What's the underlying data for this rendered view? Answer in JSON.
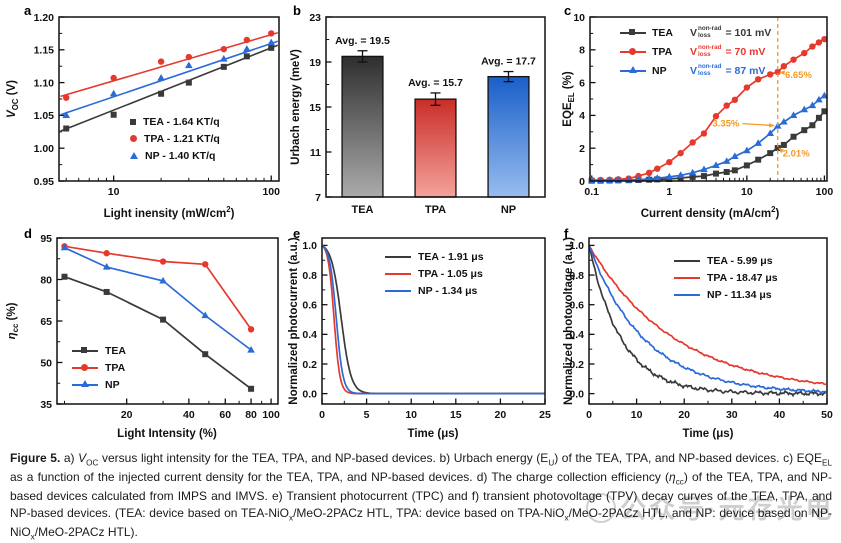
{
  "colors": {
    "tea": "#3a3a3a",
    "tpa": "#e6392e",
    "np": "#2b6bd7",
    "annotation": "#F59A23"
  },
  "figure": {
    "watermark": "公众号·元存光电",
    "caption_tokens": [
      {
        "b": "Figure 5."
      },
      {
        "t": "  a) "
      },
      {
        "i": "V"
      },
      {
        "sub": "OC"
      },
      {
        "t": " versus light intensity for the TEA, TPA, and NP-based devices. b) Urbach energy (E"
      },
      {
        "sub": "U"
      },
      {
        "t": ") of the TEA, TPA, and NP-based devices. c) EQE"
      },
      {
        "sub": "EL"
      },
      {
        "t": " as a function of the injected current density for the TEA, TPA, and NP-based devices. d) The charge collection efficiency ("
      },
      {
        "i": "η"
      },
      {
        "sub": "cc"
      },
      {
        "t": ") of the TEA, TPA, and NP-based devices calculated from IMPS and IMVS. e) Transient photocurrent (TPC) and f) transient photovoltage (TPV) decay curves of the TEA, TPA, and NP-based devices. (TEA: device based on TEA-NiO"
      },
      {
        "sub": "x"
      },
      {
        "t": "/MeO-2PACz HTL, TPA: device based on TPA-NiO"
      },
      {
        "sub": "x"
      },
      {
        "t": "/MeO-2PACz HTL, and NP: device based on NP-NiO"
      },
      {
        "sub": "x"
      },
      {
        "t": "/MeO-2PACz HTL)."
      }
    ]
  },
  "panels": {
    "a": {
      "letter": "a",
      "xlabel_tokens": [
        {
          "t": "Light inensity (mW/cm"
        },
        {
          "sup": "2"
        },
        {
          "t": ")"
        }
      ],
      "ylabel_tokens": [
        {
          "i": "V"
        },
        {
          "sub": "OC"
        },
        {
          "t": " (V)"
        }
      ],
      "legend": [
        {
          "label": "TEA - 1.64 KT/q"
        },
        {
          "label": "TPA - 1.21 KT/q"
        },
        {
          "label": "NP - 1.40 KT/q"
        }
      ]
    },
    "b": {
      "letter": "b",
      "ylabel_tokens": [
        {
          "t": "Urbach energy (meV)"
        }
      ]
    },
    "c": {
      "letter": "c",
      "xlabel_tokens": [
        {
          "t": "Current density (mA/cm"
        },
        {
          "sup": "2"
        },
        {
          "t": ")"
        }
      ],
      "ylabel_tokens": [
        {
          "t": "EQE"
        },
        {
          "sub": "EL"
        },
        {
          "t": " (%)"
        }
      ],
      "legend": [
        {
          "name": "TEA",
          "vsym": "V",
          "sup": "non-rad",
          "sub": "loss",
          "value": "= 101 mV"
        },
        {
          "name": "TPA",
          "vsym": "V",
          "sup": "non-rad",
          "sub": "loss",
          "value": "= 70 mV"
        },
        {
          "name": "NP",
          "vsym": "V",
          "sup": "non-rad",
          "sub": "loss",
          "value": "= 87 mV"
        }
      ]
    },
    "d": {
      "letter": "d",
      "xlabel_tokens": [
        {
          "t": "Light Intensity (%)"
        }
      ],
      "ylabel_tokens": [
        {
          "i": "η"
        },
        {
          "sub": "cc"
        },
        {
          "t": " (%)"
        }
      ],
      "legend": [
        {
          "label": "TEA"
        },
        {
          "label": "TPA"
        },
        {
          "label": "NP"
        }
      ]
    },
    "e": {
      "letter": "e",
      "xlabel_tokens": [
        {
          "t": "Time (μs)"
        }
      ],
      "ylabel_tokens": [
        {
          "t": "Normalized photocurrent (a.u.)"
        }
      ],
      "legend": [
        {
          "label": "TEA - 1.91 μs"
        },
        {
          "label": "TPA - 1.05 μs"
        },
        {
          "label": "NP - 1.34 μs"
        }
      ]
    },
    "f": {
      "letter": "f",
      "xlabel_tokens": [
        {
          "t": "Time (μs)"
        }
      ],
      "ylabel_tokens": [
        {
          "t": "Normalized photovoltage (a.u.)"
        }
      ],
      "legend": [
        {
          "label": "TEA - 5.99 μs"
        },
        {
          "label": "TPA - 18.47 μs"
        },
        {
          "label": "NP - 11.34 μs"
        }
      ]
    }
  },
  "chart_data": [
    {
      "id": "a",
      "type": "scatter",
      "xscale": "log",
      "xlim": [
        4.5,
        112
      ],
      "ylim": [
        0.95,
        1.2
      ],
      "xticks": [
        10,
        100
      ],
      "xticklabels": [
        "10",
        "100"
      ],
      "yticks": [
        0.95,
        1,
        1.05,
        1.1,
        1.15,
        1.2
      ],
      "yticklabels": [
        "0.95",
        "1.00",
        "1.05",
        "1.10",
        "1.15",
        "1.20"
      ],
      "x": [
        5,
        10,
        20,
        30,
        50,
        70,
        100
      ],
      "series": [
        {
          "name": "TEA",
          "color": "#3a3a3a",
          "marker": "square",
          "y": [
            1.03,
            1.051,
            1.083,
            1.1,
            1.124,
            1.14,
            1.153
          ],
          "fit": {
            "x": [
              4.6,
              110
            ],
            "y": [
              1.026,
              1.157
            ]
          }
        },
        {
          "name": "TPA",
          "color": "#e6392e",
          "marker": "circle",
          "y": [
            1.077,
            1.107,
            1.132,
            1.139,
            1.151,
            1.165,
            1.175
          ],
          "fit": {
            "x": [
              4.6,
              110
            ],
            "y": [
              1.079,
              1.176
            ]
          }
        },
        {
          "name": "NP",
          "color": "#2b6bd7",
          "marker": "triangle",
          "y": [
            1.05,
            1.083,
            1.107,
            1.126,
            1.136,
            1.151,
            1.161
          ],
          "fit": {
            "x": [
              4.6,
              110
            ],
            "y": [
              1.051,
              1.163
            ]
          }
        }
      ]
    },
    {
      "id": "b",
      "type": "bar",
      "ylim": [
        7,
        23
      ],
      "yticks": [
        7,
        11,
        15,
        19,
        23
      ],
      "yticklabels": [
        "7",
        "11",
        "15",
        "19",
        "23"
      ],
      "categories": [
        "TEA",
        "TPA",
        "NP"
      ],
      "values": [
        19.5,
        15.7,
        17.7
      ],
      "errors": [
        0.5,
        0.55,
        0.45
      ],
      "value_labels": [
        "Avg. = 19.5",
        "Avg. = 15.7",
        "Avg. = 17.7"
      ],
      "bar_gradients": [
        [
          "#2e2e2e",
          "#ababab"
        ],
        [
          "#c92d27",
          "#f5a29c"
        ],
        [
          "#1a5ec9",
          "#97bdef"
        ]
      ]
    },
    {
      "id": "c",
      "type": "line",
      "xscale": "log",
      "xlim": [
        0.095,
        108
      ],
      "ylim": [
        0,
        10
      ],
      "xticks": [
        0.1,
        1,
        10,
        100
      ],
      "xticklabels": [
        "0.1",
        "1",
        "10",
        "100"
      ],
      "yticks": [
        0,
        2,
        4,
        6,
        8,
        10
      ],
      "yticklabels": [
        "0",
        "2",
        "4",
        "6",
        "8",
        "10"
      ],
      "x": [
        0.1,
        0.13,
        0.17,
        0.22,
        0.3,
        0.4,
        0.55,
        0.7,
        1,
        1.4,
        2,
        2.8,
        4,
        5.5,
        7,
        10,
        14,
        20,
        25,
        30,
        40,
        55,
        70,
        85,
        100
      ],
      "series": [
        {
          "name": "TEA",
          "color": "#3a3a3a",
          "marker": "square",
          "y": [
            0.02,
            0.02,
            0.03,
            0.04,
            0.05,
            0.06,
            0.08,
            0.1,
            0.12,
            0.18,
            0.25,
            0.3,
            0.45,
            0.55,
            0.65,
            0.95,
            1.3,
            1.7,
            2.01,
            2.2,
            2.7,
            3.1,
            3.4,
            3.85,
            4.25
          ]
        },
        {
          "name": "TPA",
          "color": "#e6392e",
          "marker": "circle",
          "y": [
            0.05,
            0.06,
            0.07,
            0.1,
            0.15,
            0.3,
            0.5,
            0.75,
            1.15,
            1.7,
            2.35,
            2.9,
            3.95,
            4.6,
            4.95,
            5.7,
            6.2,
            6.5,
            6.65,
            7.0,
            7.4,
            7.8,
            8.2,
            8.45,
            8.65
          ]
        },
        {
          "name": "NP",
          "color": "#2b6bd7",
          "marker": "triangle",
          "y": [
            0.03,
            0.03,
            0.04,
            0.05,
            0.06,
            0.08,
            0.12,
            0.17,
            0.25,
            0.35,
            0.5,
            0.7,
            0.95,
            1.2,
            1.5,
            1.85,
            2.3,
            2.9,
            3.35,
            3.6,
            4.0,
            4.35,
            4.6,
            4.95,
            5.2
          ]
        }
      ],
      "vline_x": 25,
      "annotations": [
        {
          "text": "6.65%",
          "text_xy": [
            31,
            6.5
          ],
          "anchor": "start",
          "arrow": [
            [
              30,
              6.6
            ],
            [
              26.5,
              6.62
            ]
          ]
        },
        {
          "text": "3.35%",
          "text_xy": [
            8,
            3.55
          ],
          "anchor": "end",
          "arrow": [
            [
              8.8,
              3.5
            ],
            [
              22.5,
              3.38
            ]
          ]
        },
        {
          "text": "2.01%",
          "text_xy": [
            29,
            1.7
          ],
          "anchor": "start",
          "arrow": [
            [
              28.2,
              1.85
            ],
            [
              25.8,
              2.0
            ]
          ]
        }
      ]
    },
    {
      "id": "d",
      "type": "line",
      "xscale": "log",
      "xlim": [
        9.2,
        108
      ],
      "ylim": [
        35,
        95
      ],
      "xticks": [
        20,
        40,
        60,
        80,
        100
      ],
      "xticklabels": [
        "20",
        "40",
        "60",
        "80",
        "100"
      ],
      "yticks": [
        35,
        50,
        65,
        80,
        95
      ],
      "yticklabels": [
        "35",
        "50",
        "65",
        "80",
        "95"
      ],
      "x": [
        10,
        16,
        30,
        48,
        80
      ],
      "series": [
        {
          "name": "TEA",
          "color": "#3a3a3a",
          "marker": "square",
          "y": [
            81,
            75.5,
            65.5,
            53,
            40.5
          ]
        },
        {
          "name": "TPA",
          "color": "#e6392e",
          "marker": "circle",
          "y": [
            92,
            89.5,
            86.5,
            85.5,
            62
          ]
        },
        {
          "name": "NP",
          "color": "#2b6bd7",
          "marker": "triangle",
          "y": [
            91.5,
            84.5,
            79.5,
            67,
            54.5
          ]
        }
      ]
    },
    {
      "id": "e",
      "type": "decay",
      "xlim": [
        0,
        25
      ],
      "ylim": [
        -0.07,
        1.05
      ],
      "xticks": [
        0,
        5,
        10,
        15,
        20,
        25
      ],
      "xticklabels": [
        "0",
        "5",
        "10",
        "15",
        "20",
        "25"
      ],
      "yticks": [
        0,
        0.2,
        0.4,
        0.6,
        0.8,
        1
      ],
      "yticklabels": [
        "0.0",
        "0.2",
        "0.4",
        "0.6",
        "0.8",
        "1.0"
      ],
      "series": [
        {
          "name": "TEA",
          "tau_label": "1.91 μs",
          "color": "#3a3a3a",
          "c": 2.15,
          "w": 0.55
        },
        {
          "name": "TPA",
          "tau_label": "1.05 μs",
          "color": "#e6392e",
          "c": 1.35,
          "w": 0.33
        },
        {
          "name": "NP",
          "tau_label": "1.34 μs",
          "color": "#2b6bd7",
          "c": 1.6,
          "w": 0.38
        }
      ]
    },
    {
      "id": "f",
      "type": "decay-noisy",
      "xlim": [
        0,
        50
      ],
      "ylim": [
        -0.07,
        1.05
      ],
      "xticks": [
        0,
        10,
        20,
        30,
        40,
        50
      ],
      "xticklabels": [
        "0",
        "10",
        "20",
        "30",
        "40",
        "50"
      ],
      "yticks": [
        0,
        0.2,
        0.4,
        0.6,
        0.8,
        1
      ],
      "yticklabels": [
        "0.0",
        "0.2",
        "0.4",
        "0.6",
        "0.8",
        "1.0"
      ],
      "series": [
        {
          "name": "TEA",
          "tau_label": "5.99 μs",
          "color": "#3a3a3a",
          "tau": 6.8,
          "noise": 0.016
        },
        {
          "name": "TPA",
          "tau_label": "18.47 μs",
          "color": "#e6392e",
          "tau": 18.2,
          "noise": 0.008
        },
        {
          "name": "NP",
          "tau_label": "11.34 μs",
          "color": "#2b6bd7",
          "tau": 11.6,
          "noise": 0.011
        }
      ]
    }
  ]
}
